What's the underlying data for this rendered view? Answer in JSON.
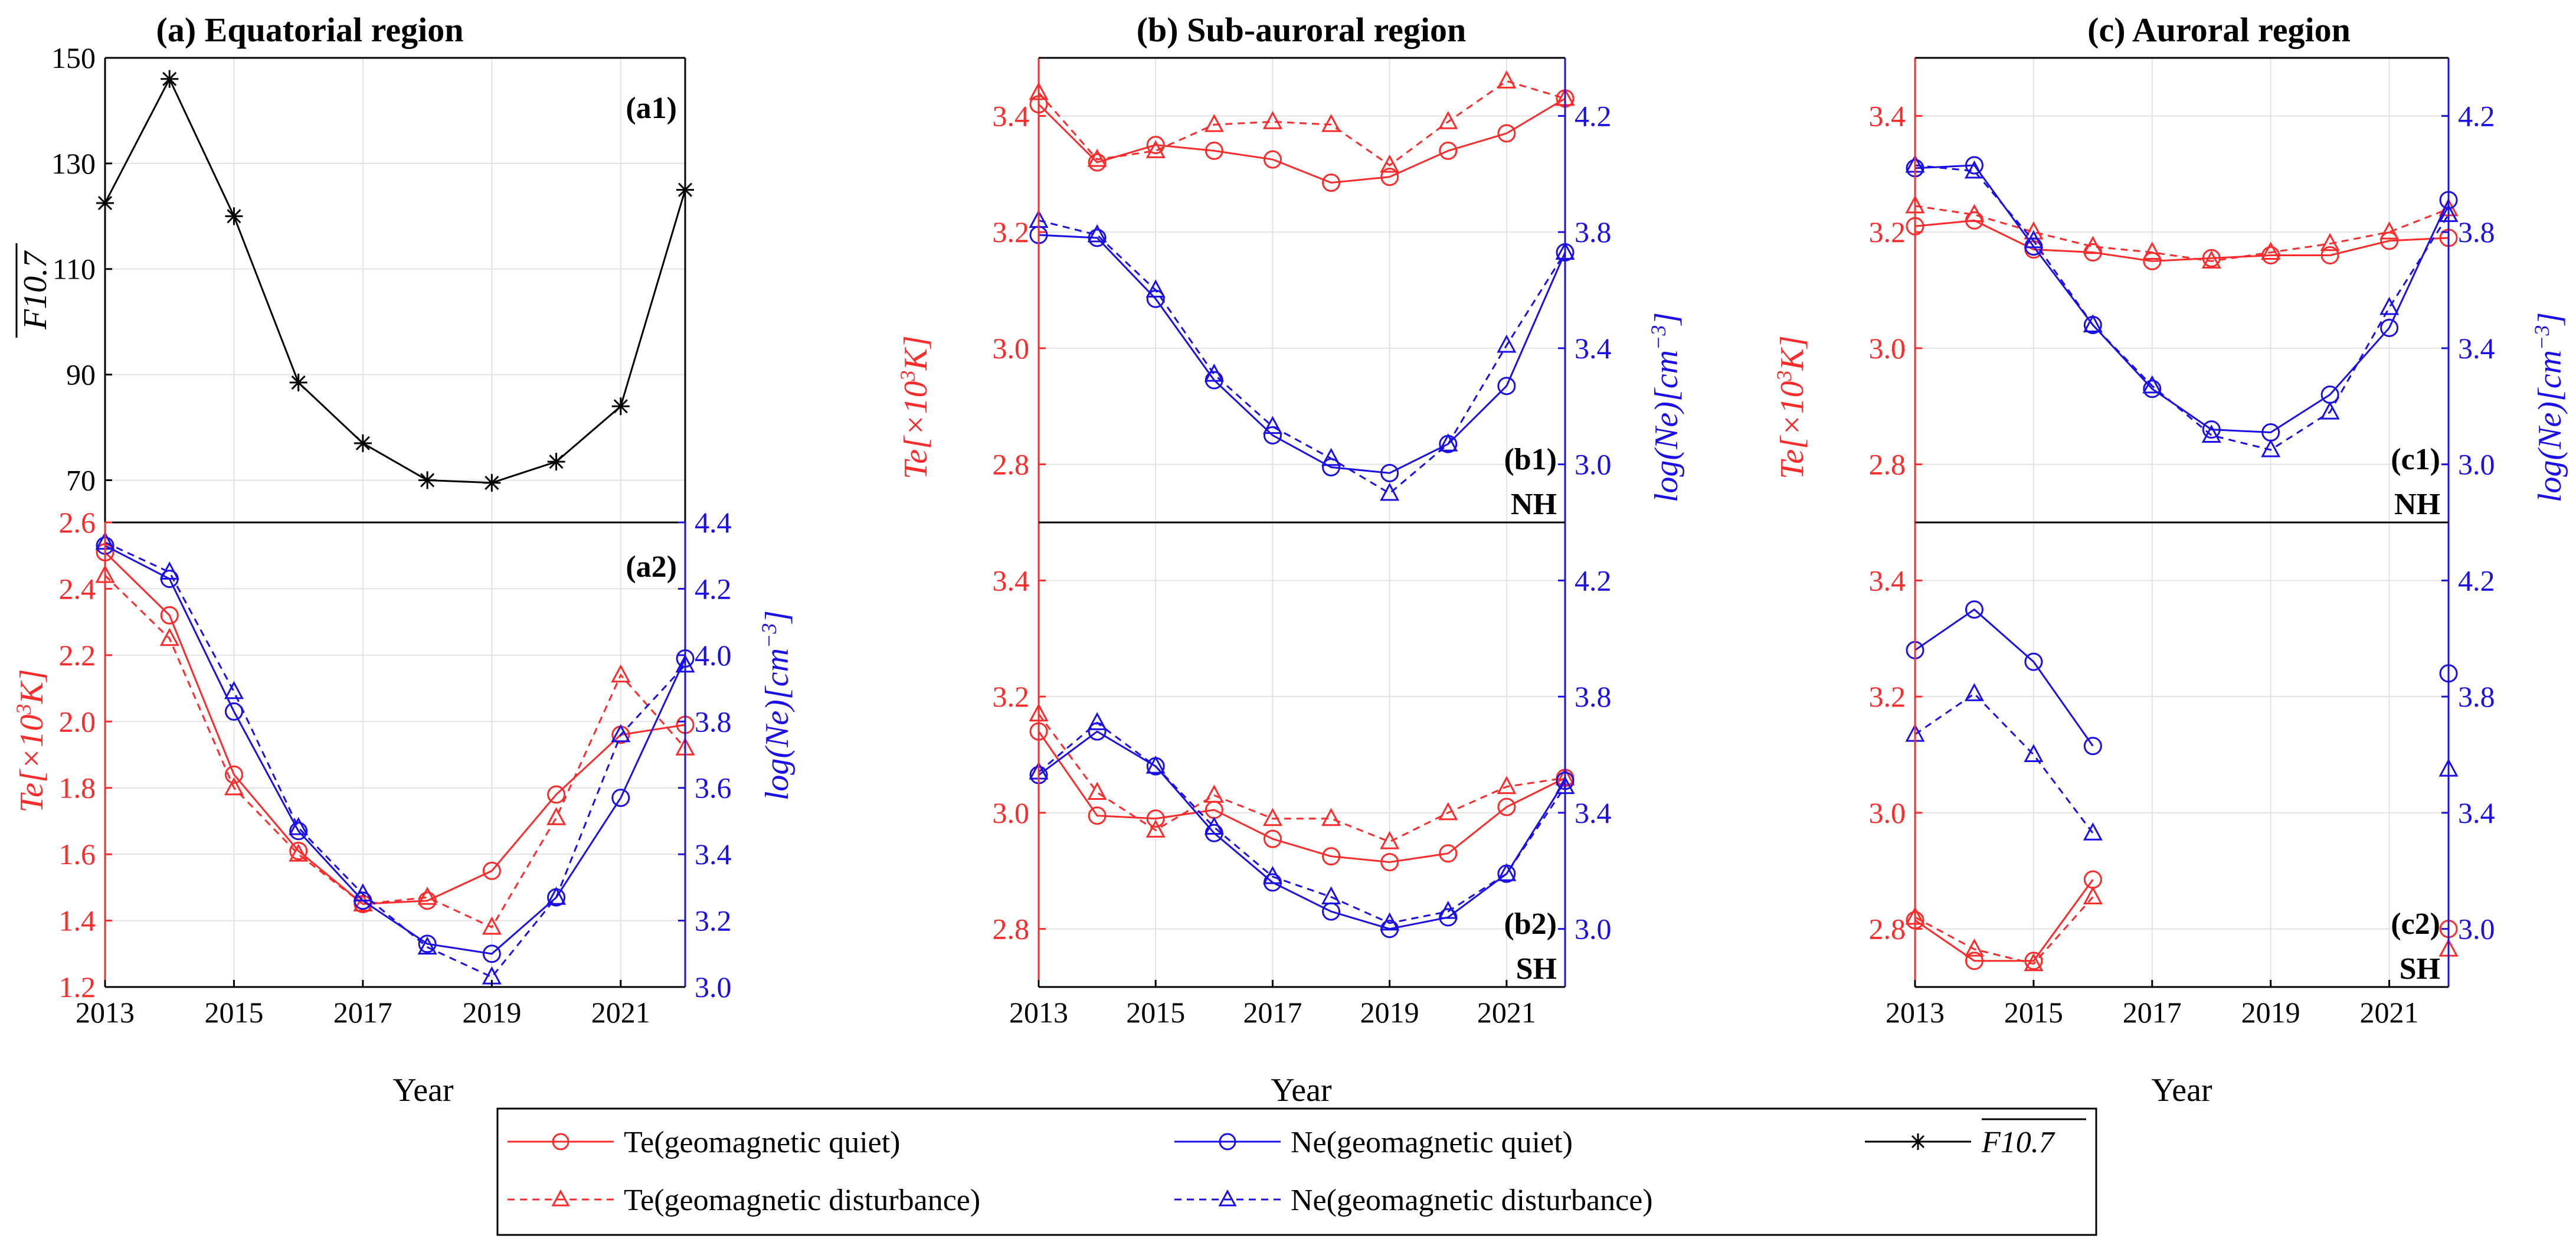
{
  "chart_data": {
    "type": "line",
    "x": [
      2013,
      2014,
      2015,
      2016,
      2017,
      2018,
      2019,
      2020,
      2021,
      2022
    ],
    "xlabel": "Year",
    "x_ticks": [
      "2013",
      "2015",
      "2017",
      "2019",
      "2021"
    ],
    "colors": {
      "te": "#ff2a2a",
      "ne": "#1a0fe8",
      "f107": "#000000"
    },
    "legend": {
      "te_quiet": "Te(geomagnetic quiet)",
      "ne_quiet": "Ne(geomagnetic quiet)",
      "f107": "F10.7",
      "te_dist": "Te(geomagnetic disturbance)",
      "ne_dist": "Ne(geomagnetic disturbance)"
    },
    "left_ylabel": {
      "base": "Te[×10",
      "sup": "3",
      "tail": "K]"
    },
    "right_ylabel": {
      "base": "log(Ne)[cm",
      "sup": "−3",
      "tail": "]"
    },
    "f107_ylabel": "F10.7",
    "panels": {
      "a": {
        "title": "(a) Equatorial region",
        "a1": {
          "label": "(a1)",
          "ylim": [
            62,
            150
          ],
          "yticks": [
            "70",
            "90",
            "110",
            "130",
            "150"
          ],
          "f107": [
            122.5,
            146,
            120,
            88.5,
            77,
            70,
            69.5,
            73.5,
            84,
            125
          ]
        },
        "a2": {
          "label": "(a2)",
          "te_lim": [
            1.2,
            2.6
          ],
          "te_ticks": [
            "1.2",
            "1.4",
            "1.6",
            "1.8",
            "2.0",
            "2.2",
            "2.4",
            "2.6"
          ],
          "ne_lim": [
            3.0,
            4.4
          ],
          "ne_ticks": [
            "3.0",
            "3.2",
            "3.4",
            "3.6",
            "3.8",
            "4.0",
            "4.2",
            "4.4"
          ],
          "te_quiet": [
            2.51,
            2.32,
            1.84,
            1.61,
            1.45,
            1.46,
            1.55,
            1.78,
            1.96,
            1.99
          ],
          "te_dist": [
            2.44,
            2.25,
            1.8,
            1.6,
            1.45,
            1.47,
            1.38,
            1.71,
            2.14,
            1.92
          ],
          "ne_quiet": [
            4.33,
            4.23,
            3.83,
            3.47,
            3.26,
            3.13,
            3.1,
            3.27,
            3.57,
            3.99
          ],
          "ne_dist": [
            4.34,
            4.25,
            3.89,
            3.48,
            3.28,
            3.12,
            3.03,
            3.27,
            3.76,
            3.97
          ]
        }
      },
      "b": {
        "title": "(b) Sub-auroral region",
        "te_lim": [
          2.7,
          3.5
        ],
        "te_ticks": [
          "2.8",
          "3.0",
          "3.2",
          "3.4"
        ],
        "ne_lim": [
          2.8,
          4.4
        ],
        "ne_ticks": [
          "3.0",
          "3.4",
          "3.8",
          "4.2"
        ],
        "b1": {
          "label": "(b1)",
          "hemi": "NH",
          "te_quiet": [
            3.42,
            3.32,
            3.35,
            3.34,
            3.325,
            3.285,
            3.295,
            3.34,
            3.37,
            3.43
          ],
          "te_dist": [
            3.44,
            3.325,
            3.34,
            3.385,
            3.39,
            3.385,
            3.315,
            3.39,
            3.46,
            3.43
          ],
          "ne_quiet": [
            3.79,
            3.78,
            3.57,
            3.29,
            3.1,
            2.99,
            2.97,
            3.07,
            3.27,
            3.73
          ],
          "ne_dist": [
            3.84,
            3.79,
            3.6,
            3.31,
            3.13,
            3.02,
            2.9,
            3.07,
            3.41,
            3.73
          ]
        },
        "b2": {
          "label": "(b2)",
          "hemi": "SH",
          "te_quiet": [
            3.14,
            2.995,
            2.99,
            3.005,
            2.955,
            2.925,
            2.915,
            2.93,
            3.01,
            3.06
          ],
          "te_dist": [
            3.17,
            3.035,
            2.97,
            3.03,
            2.99,
            2.99,
            2.95,
            3.0,
            3.045,
            3.06
          ],
          "ne_quiet": [
            3.53,
            3.68,
            3.56,
            3.33,
            3.16,
            3.06,
            3.0,
            3.04,
            3.19,
            3.51
          ],
          "ne_dist": [
            3.54,
            3.71,
            3.56,
            3.35,
            3.18,
            3.11,
            3.02,
            3.06,
            3.19,
            3.49
          ]
        }
      },
      "c": {
        "title": "(c) Auroral region",
        "te_lim": [
          2.7,
          3.5
        ],
        "te_ticks": [
          "2.8",
          "3.0",
          "3.2",
          "3.4"
        ],
        "ne_lim": [
          2.8,
          4.4
        ],
        "ne_ticks": [
          "3.0",
          "3.4",
          "3.8",
          "4.2"
        ],
        "c1": {
          "label": "(c1)",
          "hemi": "NH",
          "te_quiet": [
            3.21,
            3.22,
            3.17,
            3.165,
            3.15,
            3.155,
            3.16,
            3.16,
            3.185,
            3.19
          ],
          "te_dist": [
            3.245,
            3.23,
            3.2,
            3.175,
            3.165,
            3.15,
            3.165,
            3.18,
            3.2,
            3.24
          ],
          "ne_quiet": [
            4.02,
            4.03,
            3.75,
            3.48,
            3.26,
            3.12,
            3.11,
            3.24,
            3.47,
            3.91
          ],
          "ne_dist": [
            4.03,
            4.01,
            3.77,
            3.48,
            3.27,
            3.1,
            3.05,
            3.18,
            3.54,
            3.86
          ]
        },
        "c2": {
          "label": "(c2)",
          "hemi": "SH",
          "te_quiet": [
            2.815,
            2.745,
            2.745,
            2.885,
            null,
            null,
            null,
            null,
            null,
            2.8
          ],
          "te_dist": [
            2.82,
            2.765,
            2.74,
            2.855,
            null,
            null,
            null,
            null,
            null,
            2.765
          ],
          "ne_quiet": [
            3.96,
            4.1,
            3.92,
            3.63,
            null,
            null,
            null,
            null,
            null,
            3.88
          ],
          "ne_dist": [
            3.67,
            3.81,
            3.6,
            3.33,
            null,
            null,
            null,
            null,
            null,
            3.55
          ]
        }
      }
    }
  }
}
